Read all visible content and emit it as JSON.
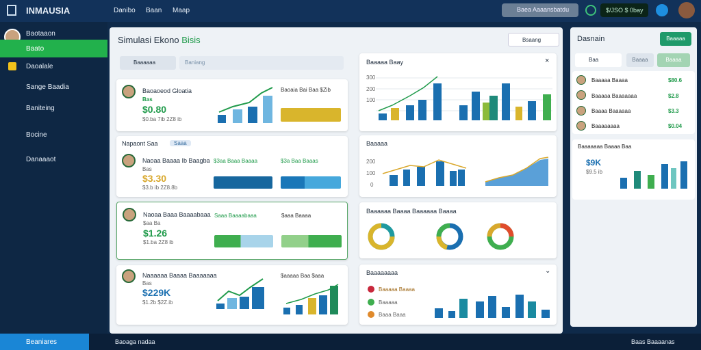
{
  "topbar": {
    "logo": "INMAUSIA",
    "nav": [
      "Danibo",
      "Baan",
      "Maap"
    ],
    "search": "Baea Aaaansbatdu",
    "balance": "$/JSO $ 0bay"
  },
  "sidebar": {
    "user": "Baotaaon",
    "items": [
      "Baato",
      "Daoalale",
      "Sange Baadia",
      "Baniteing",
      "Bocine",
      "Danaaaot"
    ]
  },
  "main": {
    "title": "Simulasi Ekono",
    "title_accent": "Bisis",
    "sort": "Bsaang",
    "filter": "Baaaaaa",
    "filter2": "Baniang",
    "section": "Napaont Saa",
    "section_tag": "Saaa",
    "cards": [
      {
        "name": "Baoaoeod Gloatia",
        "tag": "Bas",
        "value": "$0.80",
        "sub": "$0.ba  7ib  2Z8 ib",
        "side": [
          "Baoaia Bai Baa $Zib"
        ]
      },
      {
        "name": "Naoaa Baaaa Ib Baagba",
        "tag": "Bas",
        "value": "$3.30",
        "sub": "$3.b ib  2Z8.8b",
        "side": [
          "$3aa Baaa Baaaa",
          "$3a Baa Baaas"
        ]
      },
      {
        "name": "Naoaa Baaa Baaaabaaa",
        "tag": "$aa Ba",
        "value": "$1.26",
        "sub": "$1.ba  2Z8 ib",
        "side": [
          "Saaa Baaaabaaa",
          "$aaa Baaaa"
        ]
      },
      {
        "name": "Naaaaaa Baaaa Baaaaaaa",
        "tag": "Bas",
        "value": "$229K",
        "sub": "$1.2b  $2Z.ib",
        "side": [
          "$aaaaa Baa $aaa"
        ]
      }
    ]
  },
  "panels": [
    {
      "title": "Baaaaa Baay",
      "yaxis": [
        "300",
        "200",
        "100"
      ]
    },
    {
      "title": "Baaaaa",
      "yaxis": [
        "200",
        "100",
        "0"
      ]
    },
    {
      "title": "Baaaaaa Baaaa Baaaaaa Baaaa"
    },
    {
      "title": "Baaaaaaaa",
      "legend": [
        "Baaaaa Baaaa",
        "Baaaaa",
        "Baaa Baaa"
      ]
    }
  ],
  "right": {
    "title": "Dasnain",
    "button": "Baaaaa",
    "chips": [
      "Baa",
      "Baaaa",
      "Baaaa"
    ],
    "list": [
      {
        "name": "Baaaaa Baaaa",
        "value": "$80.6"
      },
      {
        "name": "Baaaaa Baaaaaaa",
        "value": "$2.8"
      },
      {
        "name": "Baaaa Baaaaaa",
        "value": "$3.3"
      },
      {
        "name": "Baaaaaaaa",
        "value": "$0.04"
      }
    ],
    "card": {
      "title": "Baaaaaaa Baaaa Baa",
      "value": "$9K",
      "sub": "$9.5 ib"
    }
  },
  "bottom": {
    "button": "Beaniares",
    "status": "Baoaga nadaa",
    "right": "Baas Baaaanas"
  }
}
